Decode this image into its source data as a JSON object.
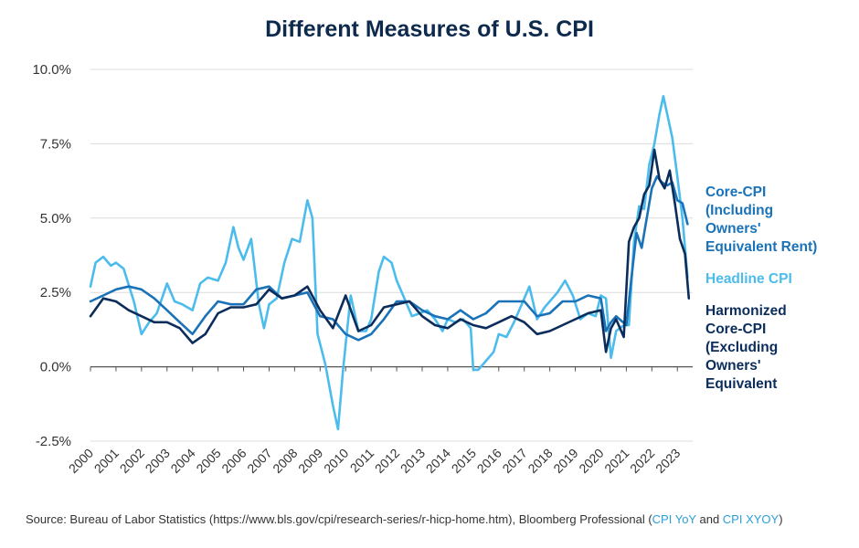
{
  "chart_data": {
    "type": "line",
    "title": "Different Measures of U.S. CPI",
    "xlabel": "",
    "ylabel": "",
    "ylim": [
      -2.5,
      10.0
    ],
    "xlim": [
      2000,
      2023.6
    ],
    "yticks": [
      "10.0%",
      "7.5%",
      "5.0%",
      "2.5%",
      "0.0%",
      "-2.5%"
    ],
    "ytick_values": [
      10.0,
      7.5,
      5.0,
      2.5,
      0.0,
      -2.5
    ],
    "xticks": [
      "2000",
      "2001",
      "2002",
      "2003",
      "2004",
      "2005",
      "2006",
      "2007",
      "2008",
      "2009",
      "2010",
      "2011",
      "2012",
      "2013",
      "2014",
      "2015",
      "2016",
      "2017",
      "2018",
      "2019",
      "2020",
      "2021",
      "2022",
      "2023"
    ],
    "grid": true,
    "legend_position": "right",
    "series": [
      {
        "name": "Core-CPI (Including Owners' Equivalent Rent)",
        "label_lines": [
          "Core-CPI",
          "(Including",
          "Owners'",
          "Equivalent Rent)"
        ],
        "color": "#1a72b8",
        "x": [
          2000.0,
          2000.5,
          2001.0,
          2001.5,
          2002.0,
          2002.5,
          2003.0,
          2003.5,
          2004.0,
          2004.5,
          2005.0,
          2005.5,
          2006.0,
          2006.5,
          2007.0,
          2007.5,
          2008.0,
          2008.5,
          2009.0,
          2009.5,
          2010.0,
          2010.5,
          2011.0,
          2011.5,
          2012.0,
          2012.5,
          2013.0,
          2013.5,
          2014.0,
          2014.5,
          2015.0,
          2015.5,
          2016.0,
          2016.5,
          2017.0,
          2017.5,
          2018.0,
          2018.5,
          2019.0,
          2019.5,
          2020.0,
          2020.2,
          2020.4,
          2020.6,
          2021.0,
          2021.2,
          2021.4,
          2021.6,
          2022.0,
          2022.2,
          2022.4,
          2022.6,
          2022.8,
          2023.0,
          2023.2,
          2023.4
        ],
        "values": [
          2.2,
          2.4,
          2.6,
          2.7,
          2.6,
          2.3,
          1.9,
          1.5,
          1.1,
          1.7,
          2.2,
          2.1,
          2.1,
          2.6,
          2.7,
          2.3,
          2.4,
          2.5,
          1.7,
          1.6,
          1.1,
          0.9,
          1.1,
          1.6,
          2.2,
          2.2,
          1.9,
          1.7,
          1.6,
          1.9,
          1.6,
          1.8,
          2.2,
          2.2,
          2.2,
          1.7,
          1.8,
          2.2,
          2.2,
          2.4,
          2.3,
          1.2,
          1.5,
          1.7,
          1.4,
          3.0,
          4.5,
          4.0,
          6.0,
          6.4,
          6.2,
          6.1,
          6.2,
          5.6,
          5.5,
          4.8
        ]
      },
      {
        "name": "Headline CPI",
        "label_lines": [
          "Headline CPI"
        ],
        "color": "#4bbcec",
        "x": [
          2000.0,
          2000.2,
          2000.5,
          2000.8,
          2001.0,
          2001.3,
          2001.7,
          2002.0,
          2002.3,
          2002.6,
          2003.0,
          2003.3,
          2003.6,
          2004.0,
          2004.3,
          2004.6,
          2005.0,
          2005.3,
          2005.6,
          2005.8,
          2006.0,
          2006.3,
          2006.6,
          2006.8,
          2007.0,
          2007.3,
          2007.6,
          2007.9,
          2008.2,
          2008.5,
          2008.7,
          2008.9,
          2009.2,
          2009.5,
          2009.7,
          2009.9,
          2010.2,
          2010.5,
          2010.8,
          2011.0,
          2011.3,
          2011.5,
          2011.8,
          2012.0,
          2012.3,
          2012.6,
          2012.9,
          2013.2,
          2013.5,
          2013.8,
          2014.0,
          2014.3,
          2014.6,
          2014.9,
          2015.0,
          2015.2,
          2015.5,
          2015.8,
          2016.0,
          2016.3,
          2016.6,
          2016.9,
          2017.2,
          2017.5,
          2017.8,
          2018.0,
          2018.3,
          2018.6,
          2018.9,
          2019.2,
          2019.5,
          2019.8,
          2020.0,
          2020.2,
          2020.4,
          2020.6,
          2020.9,
          2021.1,
          2021.3,
          2021.5,
          2021.7,
          2021.9,
          2022.1,
          2022.3,
          2022.45,
          2022.6,
          2022.8,
          2023.0,
          2023.2,
          2023.4
        ],
        "values": [
          2.7,
          3.5,
          3.7,
          3.4,
          3.5,
          3.3,
          2.2,
          1.1,
          1.5,
          1.8,
          2.8,
          2.2,
          2.1,
          1.9,
          2.8,
          3.0,
          2.9,
          3.5,
          4.7,
          4.0,
          3.6,
          4.3,
          2.1,
          1.3,
          2.1,
          2.3,
          3.5,
          4.3,
          4.2,
          5.6,
          5.0,
          1.1,
          0.1,
          -1.3,
          -2.1,
          -0.1,
          2.4,
          1.2,
          1.2,
          1.6,
          3.2,
          3.7,
          3.5,
          2.9,
          2.3,
          1.7,
          1.8,
          1.9,
          1.6,
          1.2,
          1.6,
          1.5,
          1.6,
          1.3,
          -0.1,
          -0.1,
          0.2,
          0.5,
          1.1,
          1.0,
          1.5,
          2.1,
          2.7,
          1.6,
          2.0,
          2.2,
          2.5,
          2.9,
          2.4,
          1.6,
          1.8,
          1.7,
          2.4,
          2.3,
          0.3,
          1.2,
          1.4,
          1.4,
          4.2,
          5.4,
          5.3,
          6.8,
          7.5,
          8.5,
          9.1,
          8.5,
          7.7,
          6.4,
          5.0,
          3.0
        ]
      },
      {
        "name": "Harmonized Core-CPI (Excluding Owners' Equivalent",
        "label_lines": [
          "Harmonized",
          "Core-CPI",
          "(Excluding",
          "Owners'",
          "Equivalent"
        ],
        "color": "#0b2d5c",
        "x": [
          2000.0,
          2000.5,
          2001.0,
          2001.5,
          2002.0,
          2002.5,
          2003.0,
          2003.5,
          2004.0,
          2004.5,
          2005.0,
          2005.5,
          2006.0,
          2006.5,
          2007.0,
          2007.5,
          2008.0,
          2008.5,
          2009.0,
          2009.5,
          2010.0,
          2010.5,
          2011.0,
          2011.5,
          2012.0,
          2012.5,
          2013.0,
          2013.5,
          2014.0,
          2014.5,
          2015.0,
          2015.5,
          2016.0,
          2016.5,
          2017.0,
          2017.5,
          2018.0,
          2018.5,
          2019.0,
          2019.5,
          2020.0,
          2020.2,
          2020.4,
          2020.6,
          2020.9,
          2021.1,
          2021.3,
          2021.5,
          2021.7,
          2021.9,
          2022.1,
          2022.3,
          2022.5,
          2022.7,
          2022.9,
          2023.1,
          2023.3,
          2023.45
        ],
        "values": [
          1.7,
          2.3,
          2.2,
          1.9,
          1.7,
          1.5,
          1.5,
          1.3,
          0.8,
          1.1,
          1.8,
          2.0,
          2.0,
          2.1,
          2.6,
          2.3,
          2.4,
          2.7,
          1.9,
          1.3,
          2.4,
          1.2,
          1.4,
          2.0,
          2.1,
          2.2,
          1.7,
          1.4,
          1.3,
          1.6,
          1.4,
          1.3,
          1.5,
          1.7,
          1.5,
          1.1,
          1.2,
          1.4,
          1.6,
          1.8,
          1.9,
          0.5,
          1.3,
          1.6,
          1.0,
          4.2,
          4.7,
          5.0,
          5.8,
          6.1,
          7.3,
          6.3,
          6.0,
          6.6,
          5.5,
          4.3,
          3.8,
          2.3
        ]
      }
    ]
  },
  "source": {
    "prefix": "Source: Bureau of Labor Statistics (https://www.bls.gov/cpi/research-series/r-hicp-home.htm), Bloomberg Professional (",
    "link1": "CPI YoY",
    "middle": " and ",
    "link2": "CPI XYOY",
    "suffix": ")"
  }
}
